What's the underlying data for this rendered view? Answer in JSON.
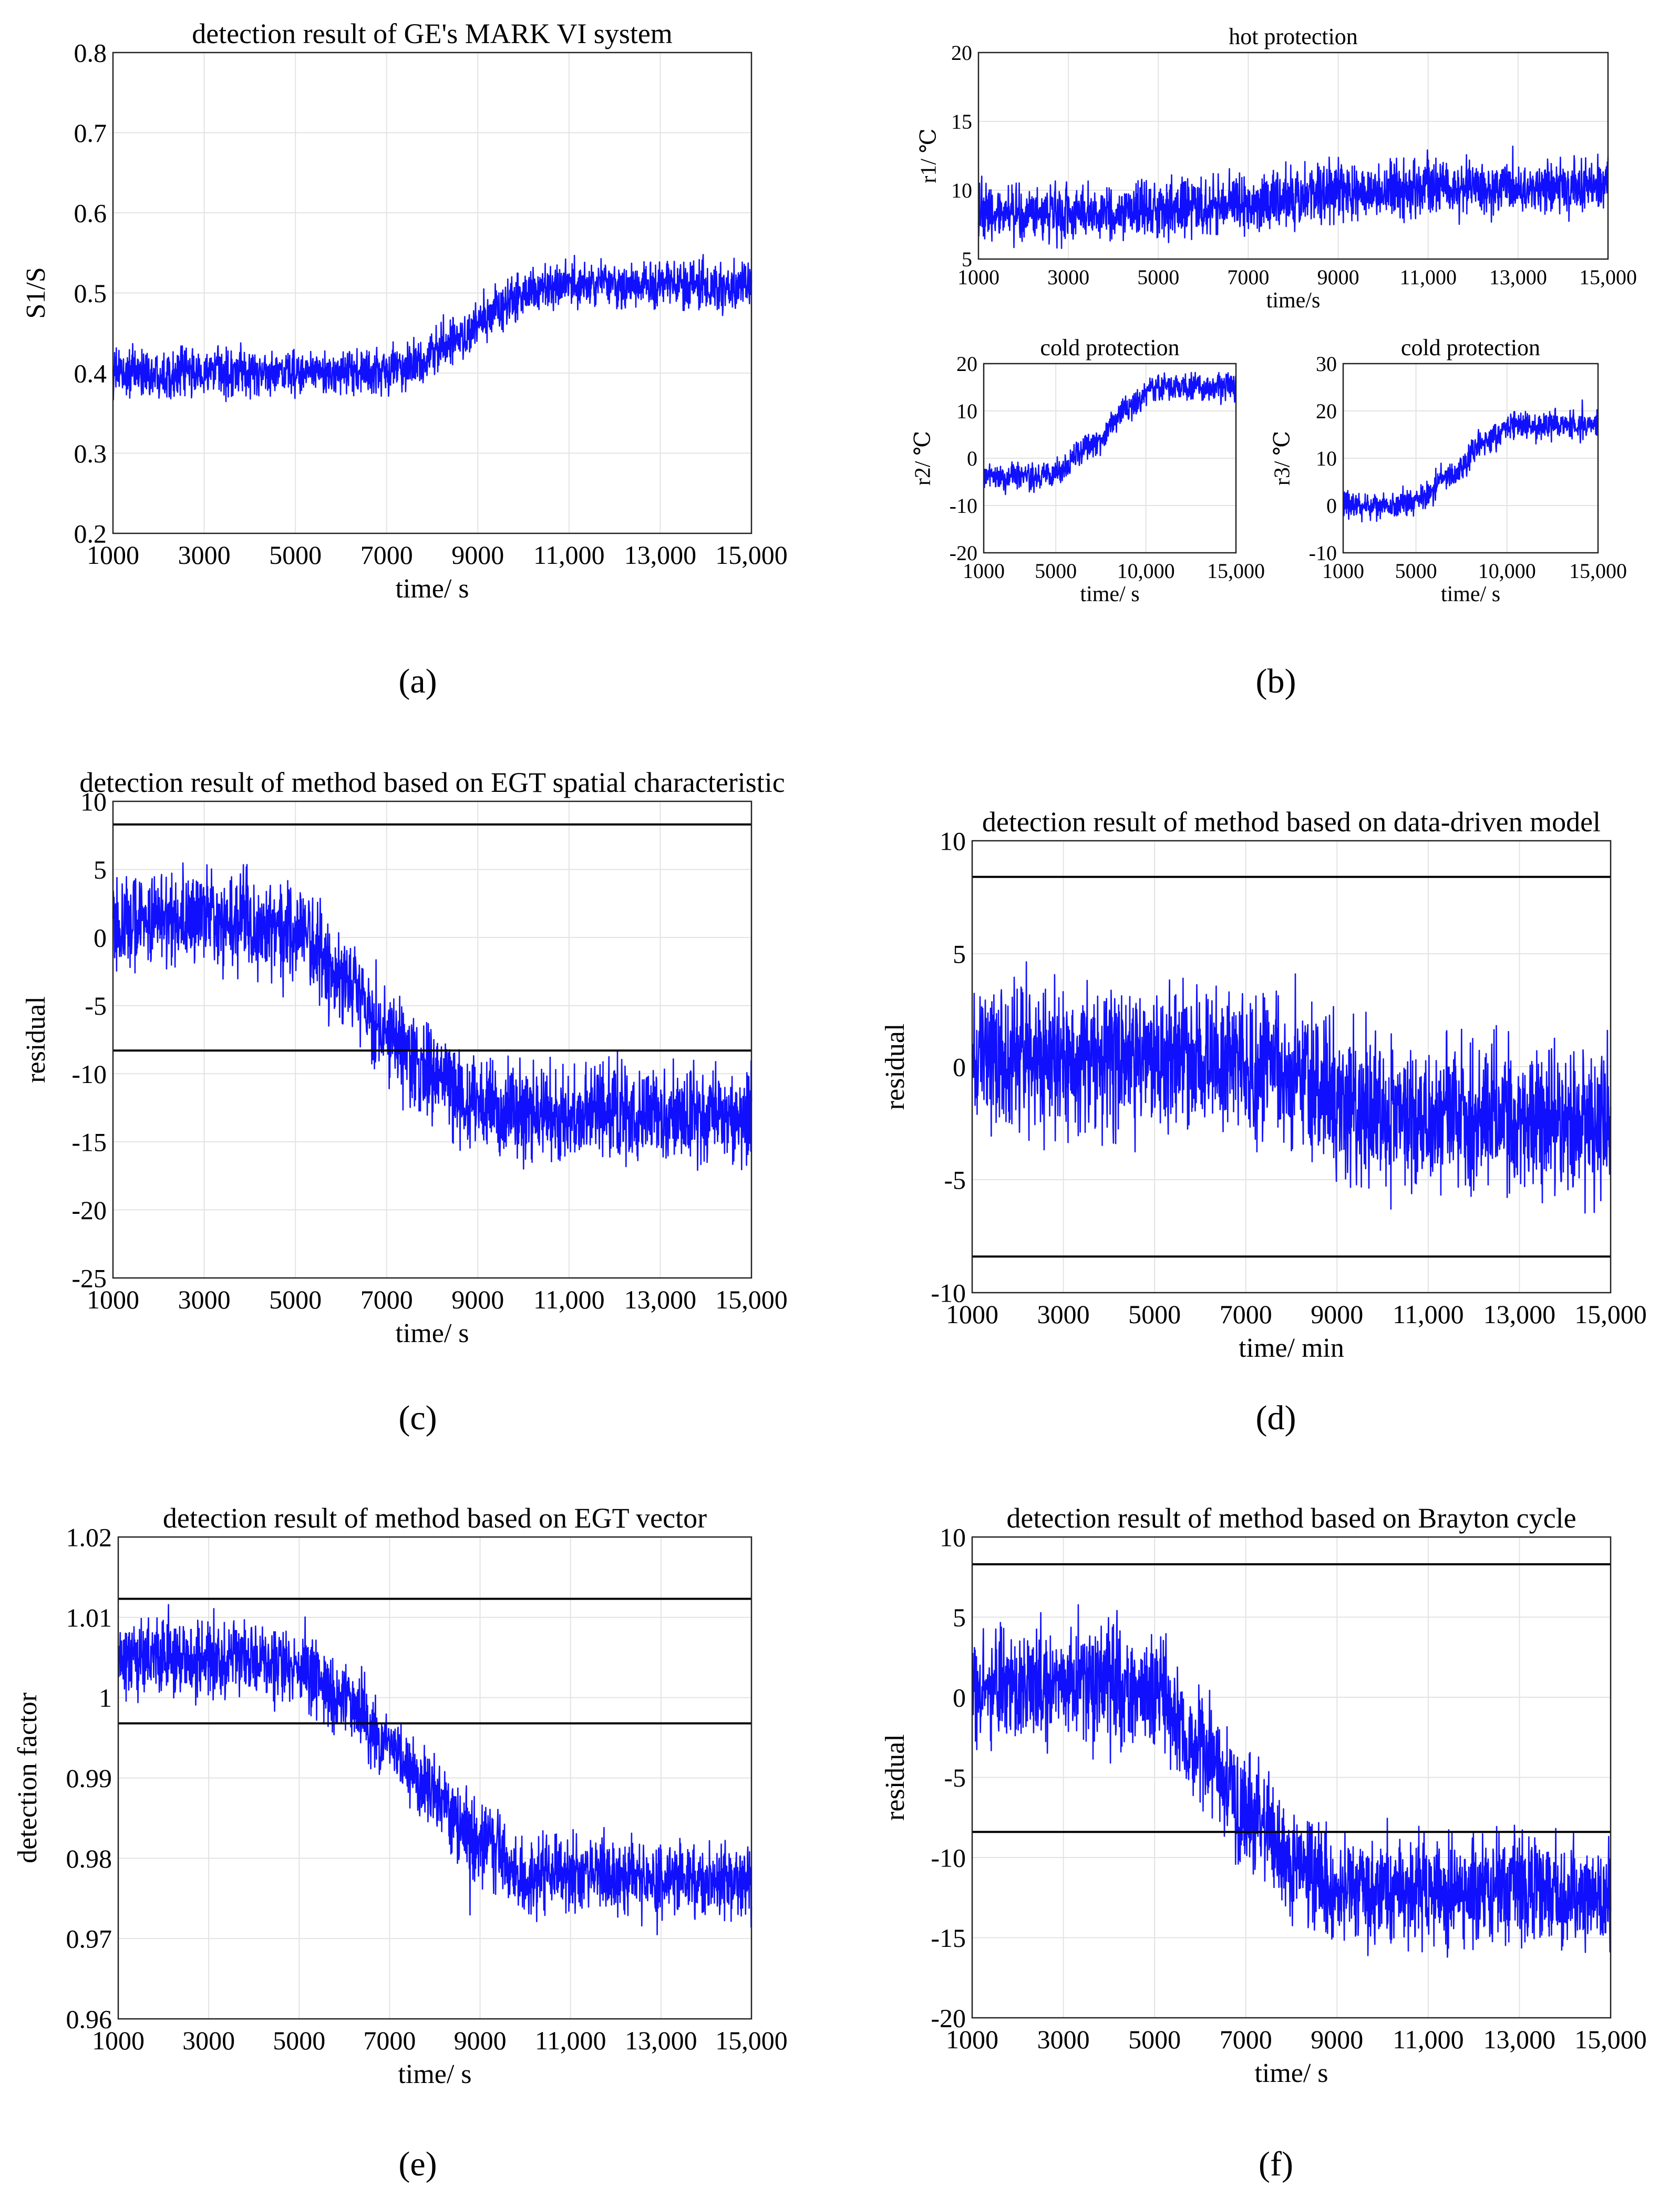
{
  "figure": {
    "captions": [
      "(a)",
      "(b)",
      "(c)",
      "(d)",
      "(e)",
      "(f)"
    ]
  },
  "chart_data": [
    {
      "id": "a",
      "type": "line",
      "title": "detection result of GE's MARK VI system",
      "xlabel": "time/ s",
      "ylabel": "S1/S",
      "xlim": [
        1000,
        15000
      ],
      "ylim": [
        0.2,
        0.8
      ],
      "xticks": [
        1000,
        3000,
        5000,
        7000,
        9000,
        11000,
        13000,
        15000
      ],
      "xticklabels": [
        "1000",
        "3000",
        "5000",
        "7000",
        "9000",
        "11,000",
        "13,000",
        "15,000"
      ],
      "yticks": [
        0.2,
        0.3,
        0.4,
        0.5,
        0.6,
        0.7,
        0.8
      ],
      "yticklabels": [
        "0.2",
        "0.3",
        "0.4",
        "0.5",
        "0.6",
        "0.7",
        "0.8"
      ],
      "grid": true,
      "series": [
        {
          "name": "S1/S",
          "color": "#1010ff",
          "x": [
            1000,
            3000,
            5000,
            6500,
            7500,
            8500,
            9500,
            10200,
            11000,
            13000,
            15000
          ],
          "y": [
            0.4,
            0.4,
            0.4,
            0.4,
            0.41,
            0.44,
            0.48,
            0.505,
            0.51,
            0.51,
            0.51
          ],
          "noise_amplitude": 0.05
        }
      ],
      "thresholds": []
    },
    {
      "id": "b1",
      "type": "line",
      "title": "hot protection",
      "xlabel": "time/s",
      "ylabel": "r1/ ℃",
      "xlim": [
        1000,
        15000
      ],
      "ylim": [
        5,
        20
      ],
      "xticks": [
        1000,
        3000,
        5000,
        7000,
        9000,
        11000,
        13000,
        15000
      ],
      "xticklabels": [
        "1000",
        "3000",
        "5000",
        "7000",
        "9000",
        "11,000",
        "13,000",
        "15,000"
      ],
      "yticks": [
        5,
        10,
        15,
        20
      ],
      "yticklabels": [
        "5",
        "10",
        "15",
        "20"
      ],
      "grid": true,
      "series": [
        {
          "name": "r1",
          "color": "#1010ff",
          "x": [
            1000,
            4000,
            7000,
            9000,
            11000,
            15000
          ],
          "y": [
            8.3,
            8.4,
            9.0,
            9.9,
            10.2,
            10.3
          ],
          "noise_amplitude": 3.5
        }
      ],
      "thresholds": []
    },
    {
      "id": "b2",
      "type": "line",
      "title": "cold protection",
      "xlabel": "time/ s",
      "ylabel": "r2/ ℃",
      "xlim": [
        1000,
        15000
      ],
      "ylim": [
        -20,
        20
      ],
      "xticks": [
        1000,
        5000,
        10000,
        15000
      ],
      "xticklabels": [
        "1000",
        "5000",
        "10,000",
        "15,000"
      ],
      "yticks": [
        -20,
        -10,
        0,
        10,
        20
      ],
      "yticklabels": [
        "-20",
        "-10",
        "0",
        "10",
        "20"
      ],
      "grid": true,
      "series": [
        {
          "name": "r2",
          "color": "#1010ff",
          "x": [
            1000,
            4000,
            5000,
            7000,
            9000,
            10500,
            15000
          ],
          "y": [
            -4,
            -4,
            -3,
            3,
            10,
            15,
            15
          ],
          "noise_amplitude": 5
        }
      ],
      "thresholds": []
    },
    {
      "id": "b3",
      "type": "line",
      "title": "cold protection",
      "xlabel": "time/ s",
      "ylabel": "r3/ ℃",
      "xlim": [
        1000,
        15000
      ],
      "ylim": [
        -10,
        30
      ],
      "xticks": [
        1000,
        5000,
        10000,
        15000
      ],
      "xticklabels": [
        "1000",
        "5000",
        "10,000",
        "15,000"
      ],
      "yticks": [
        -10,
        0,
        10,
        20,
        30
      ],
      "yticklabels": [
        "-10",
        "0",
        "10",
        "20",
        "30"
      ],
      "grid": true,
      "series": [
        {
          "name": "r3",
          "color": "#1010ff",
          "x": [
            1000,
            4000,
            5000,
            7000,
            9000,
            10500,
            15000
          ],
          "y": [
            0,
            0,
            1,
            7,
            14,
            17,
            17
          ],
          "noise_amplitude": 5
        }
      ],
      "thresholds": []
    },
    {
      "id": "c",
      "type": "line",
      "title": "detection result of method based on EGT spatial characteristic",
      "xlabel": "time/ s",
      "ylabel": "residual",
      "xlim": [
        1000,
        15000
      ],
      "ylim": [
        -25,
        10
      ],
      "xticks": [
        1000,
        3000,
        5000,
        7000,
        9000,
        11000,
        13000,
        15000
      ],
      "xticklabels": [
        "1000",
        "3000",
        "5000",
        "7000",
        "9000",
        "11,000",
        "13,000",
        "15,000"
      ],
      "yticks": [
        -25,
        -20,
        -15,
        -10,
        -5,
        0,
        5,
        10
      ],
      "yticklabels": [
        "-25",
        "-20",
        "-15",
        "-10",
        "-5",
        "0",
        "5",
        "10"
      ],
      "grid": true,
      "series": [
        {
          "name": "residual",
          "color": "#1010ff",
          "x": [
            1000,
            3000,
            5000,
            6000,
            7000,
            8000,
            9000,
            10000,
            15000
          ],
          "y": [
            1,
            1.5,
            0.5,
            -3,
            -7,
            -10,
            -12,
            -13,
            -13
          ],
          "noise_amplitude": 6
        }
      ],
      "thresholds": [
        8.3,
        -8.3
      ]
    },
    {
      "id": "d",
      "type": "line",
      "title": "detection result of method based on data-driven model",
      "xlabel": "time/ min",
      "ylabel": "residual",
      "xlim": [
        1000,
        15000
      ],
      "ylim": [
        -10,
        10
      ],
      "xticks": [
        1000,
        3000,
        5000,
        7000,
        9000,
        11000,
        13000,
        15000
      ],
      "xticklabels": [
        "1000",
        "3000",
        "5000",
        "7000",
        "9000",
        "11,000",
        "13,000",
        "15,000"
      ],
      "yticks": [
        -10,
        -5,
        0,
        5,
        10
      ],
      "yticklabels": [
        "-10",
        "-5",
        "0",
        "5",
        "10"
      ],
      "grid": true,
      "series": [
        {
          "name": "residual",
          "color": "#1010ff",
          "x": [
            1000,
            5000,
            7000,
            8000,
            9000,
            10000,
            15000
          ],
          "y": [
            0.3,
            0.4,
            0.3,
            -0.3,
            -1.5,
            -2.2,
            -2.2
          ],
          "noise_amplitude": 5.5
        }
      ],
      "thresholds": [
        8.4,
        -8.4
      ]
    },
    {
      "id": "e",
      "type": "line",
      "title": "detection result of method based on EGT vector",
      "xlabel": "time/ s",
      "ylabel": "detection factor",
      "xlim": [
        1000,
        15000
      ],
      "ylim": [
        0.96,
        1.02
      ],
      "xticks": [
        1000,
        3000,
        5000,
        7000,
        9000,
        11000,
        13000,
        15000
      ],
      "xticklabels": [
        "1000",
        "3000",
        "5000",
        "7000",
        "9000",
        "11,000",
        "13,000",
        "15,000"
      ],
      "yticks": [
        0.96,
        0.97,
        0.98,
        0.99,
        1.0,
        1.01,
        1.02
      ],
      "yticklabels": [
        "0.96",
        "0.97",
        "0.98",
        "0.99",
        "1",
        "1.01",
        "1.02"
      ],
      "grid": true,
      "series": [
        {
          "name": "detection factor",
          "color": "#1010ff",
          "x": [
            1000,
            3000,
            5000,
            6000,
            7000,
            8000,
            9000,
            10000,
            15000
          ],
          "y": [
            1.005,
            1.005,
            1.004,
            1.0,
            0.994,
            0.988,
            0.982,
            0.978,
            0.977
          ],
          "noise_amplitude": 0.008
        }
      ],
      "thresholds": [
        1.0123,
        0.9968
      ]
    },
    {
      "id": "f",
      "type": "line",
      "title": "detection result of method based on Brayton cycle",
      "xlabel": "time/ s",
      "ylabel": "residual",
      "xlim": [
        1000,
        15000
      ],
      "ylim": [
        -20,
        10
      ],
      "xticks": [
        1000,
        3000,
        5000,
        7000,
        9000,
        11000,
        13000,
        15000
      ],
      "xticklabels": [
        "1000",
        "3000",
        "5000",
        "7000",
        "9000",
        "11,000",
        "13,000",
        "15,000"
      ],
      "yticks": [
        -20,
        -15,
        -10,
        -5,
        0,
        5,
        10
      ],
      "yticklabels": [
        "-20",
        "-15",
        "-10",
        "-5",
        "0",
        "5",
        "10"
      ],
      "grid": true,
      "series": [
        {
          "name": "residual",
          "color": "#1010ff",
          "x": [
            1000,
            3000,
            5000,
            6000,
            7000,
            8000,
            9000,
            10000,
            15000
          ],
          "y": [
            0.5,
            1,
            0.5,
            -3,
            -7,
            -10,
            -11.5,
            -12,
            -12.5
          ],
          "noise_amplitude": 6
        }
      ],
      "thresholds": [
        8.3,
        -8.4
      ]
    }
  ]
}
